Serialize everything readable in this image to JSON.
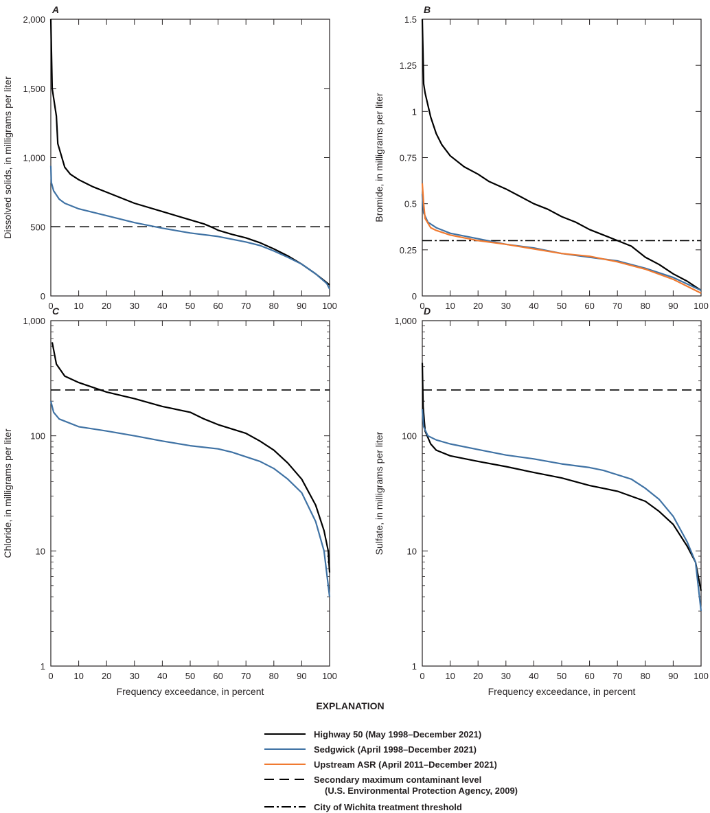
{
  "chart_data": [
    {
      "type": "line",
      "panel_label": "A",
      "ylabel": "Dissolved solids, in milligrams per liter",
      "xlabel": "",
      "xlim": [
        0,
        100
      ],
      "ylim": [
        0,
        2000
      ],
      "yscale": "linear",
      "xticks": [
        "0",
        "10",
        "20",
        "30",
        "40",
        "50",
        "60",
        "70",
        "80",
        "90",
        "100"
      ],
      "yticks": [
        {
          "v": 0,
          "label": "0"
        },
        {
          "v": 500,
          "label": "500"
        },
        {
          "v": 1000,
          "label": "1,000"
        },
        {
          "v": 1500,
          "label": "1,500"
        },
        {
          "v": 2000,
          "label": "2,000"
        }
      ],
      "series": [
        {
          "name": "Highway 50",
          "color": "#000000",
          "points": [
            [
              0,
              2000
            ],
            [
              0.5,
              1500
            ],
            [
              2,
              1300
            ],
            [
              2.5,
              1100
            ],
            [
              5,
              930
            ],
            [
              7,
              880
            ],
            [
              10,
              840
            ],
            [
              15,
              790
            ],
            [
              20,
              750
            ],
            [
              30,
              670
            ],
            [
              40,
              610
            ],
            [
              50,
              550
            ],
            [
              55,
              520
            ],
            [
              58,
              495
            ],
            [
              60,
              475
            ],
            [
              65,
              445
            ],
            [
              70,
              420
            ],
            [
              75,
              385
            ],
            [
              80,
              340
            ],
            [
              85,
              290
            ],
            [
              90,
              230
            ],
            [
              95,
              160
            ],
            [
              100,
              80
            ]
          ]
        },
        {
          "name": "Sedgwick",
          "color": "#3f72a4",
          "points": [
            [
              0,
              940
            ],
            [
              0.2,
              820
            ],
            [
              1,
              760
            ],
            [
              3,
              700
            ],
            [
              5,
              670
            ],
            [
              10,
              630
            ],
            [
              20,
              580
            ],
            [
              30,
              530
            ],
            [
              40,
              490
            ],
            [
              50,
              455
            ],
            [
              60,
              430
            ],
            [
              70,
              390
            ],
            [
              75,
              365
            ],
            [
              80,
              325
            ],
            [
              85,
              280
            ],
            [
              90,
              230
            ],
            [
              95,
              160
            ],
            [
              99,
              90
            ],
            [
              100,
              50
            ]
          ]
        }
      ],
      "reference_lines": [
        {
          "type": "smcl",
          "value": 500
        }
      ]
    },
    {
      "type": "line",
      "panel_label": "B",
      "ylabel": "Bromide, in milligrams per liter",
      "xlabel": "",
      "xlim": [
        0,
        100
      ],
      "ylim": [
        0,
        1.5
      ],
      "yscale": "linear",
      "xticks": [
        "0",
        "10",
        "20",
        "30",
        "40",
        "50",
        "60",
        "70",
        "80",
        "90",
        "100"
      ],
      "yticks": [
        {
          "v": 0,
          "label": "0"
        },
        {
          "v": 0.25,
          "label": "0.25"
        },
        {
          "v": 0.5,
          "label": "0.5"
        },
        {
          "v": 0.75,
          "label": "0.75"
        },
        {
          "v": 1,
          "label": "1"
        },
        {
          "v": 1.25,
          "label": "1.25"
        },
        {
          "v": 1.5,
          "label": "1.5"
        }
      ],
      "series": [
        {
          "name": "Highway 50",
          "color": "#000000",
          "points": [
            [
              0,
              1.5
            ],
            [
              0.5,
              1.15
            ],
            [
              1,
              1.1
            ],
            [
              3,
              0.97
            ],
            [
              5,
              0.88
            ],
            [
              7,
              0.82
            ],
            [
              10,
              0.76
            ],
            [
              15,
              0.7
            ],
            [
              20,
              0.66
            ],
            [
              24,
              0.62
            ],
            [
              30,
              0.58
            ],
            [
              35,
              0.54
            ],
            [
              40,
              0.5
            ],
            [
              45,
              0.47
            ],
            [
              50,
              0.43
            ],
            [
              55,
              0.4
            ],
            [
              60,
              0.36
            ],
            [
              65,
              0.33
            ],
            [
              70,
              0.3
            ],
            [
              75,
              0.27
            ],
            [
              80,
              0.21
            ],
            [
              85,
              0.17
            ],
            [
              90,
              0.12
            ],
            [
              95,
              0.08
            ],
            [
              100,
              0.03
            ]
          ]
        },
        {
          "name": "Sedgwick",
          "color": "#3f72a4",
          "points": [
            [
              0,
              0.55
            ],
            [
              0.5,
              0.45
            ],
            [
              2,
              0.4
            ],
            [
              5,
              0.37
            ],
            [
              10,
              0.34
            ],
            [
              20,
              0.31
            ],
            [
              30,
              0.28
            ],
            [
              40,
              0.26
            ],
            [
              50,
              0.23
            ],
            [
              60,
              0.21
            ],
            [
              70,
              0.19
            ],
            [
              80,
              0.15
            ],
            [
              90,
              0.1
            ],
            [
              100,
              0.03
            ]
          ]
        },
        {
          "name": "Upstream ASR",
          "color": "#f07a30",
          "points": [
            [
              0,
              0.61
            ],
            [
              0.5,
              0.5
            ],
            [
              1,
              0.42
            ],
            [
              3,
              0.37
            ],
            [
              5,
              0.355
            ],
            [
              10,
              0.33
            ],
            [
              20,
              0.3
            ],
            [
              30,
              0.28
            ],
            [
              40,
              0.255
            ],
            [
              50,
              0.23
            ],
            [
              60,
              0.215
            ],
            [
              70,
              0.185
            ],
            [
              80,
              0.145
            ],
            [
              90,
              0.09
            ],
            [
              100,
              0.015
            ]
          ]
        }
      ],
      "reference_lines": [
        {
          "type": "wichita",
          "value": 0.3
        }
      ]
    },
    {
      "type": "line",
      "panel_label": "C",
      "ylabel": "Chloride, in milligrams per liter",
      "xlabel": "Frequency exceedance, in percent",
      "xlim": [
        0,
        100
      ],
      "ylim": [
        1,
        1000
      ],
      "yscale": "log",
      "xticks": [
        "0",
        "10",
        "20",
        "30",
        "40",
        "50",
        "60",
        "70",
        "80",
        "90",
        "100"
      ],
      "yticks": [
        {
          "v": 1,
          "label": "1"
        },
        {
          "v": 10,
          "label": "10"
        },
        {
          "v": 100,
          "label": "100"
        },
        {
          "v": 1000,
          "label": "1,000"
        }
      ],
      "series": [
        {
          "name": "Highway 50",
          "color": "#000000",
          "points": [
            [
              0.5,
              650
            ],
            [
              2,
              420
            ],
            [
              5,
              330
            ],
            [
              10,
              290
            ],
            [
              20,
              240
            ],
            [
              30,
              210
            ],
            [
              40,
              180
            ],
            [
              50,
              160
            ],
            [
              55,
              140
            ],
            [
              60,
              125
            ],
            [
              70,
              105
            ],
            [
              75,
              90
            ],
            [
              80,
              75
            ],
            [
              85,
              58
            ],
            [
              90,
              42
            ],
            [
              95,
              25
            ],
            [
              98,
              15
            ],
            [
              99.5,
              10
            ],
            [
              100,
              6.5
            ]
          ]
        },
        {
          "name": "Sedgwick",
          "color": "#3f72a4",
          "points": [
            [
              0,
              200
            ],
            [
              1,
              160
            ],
            [
              3,
              140
            ],
            [
              10,
              120
            ],
            [
              20,
              110
            ],
            [
              30,
              100
            ],
            [
              40,
              90
            ],
            [
              50,
              82
            ],
            [
              60,
              77
            ],
            [
              65,
              72
            ],
            [
              75,
              60
            ],
            [
              80,
              52
            ],
            [
              85,
              42
            ],
            [
              90,
              32
            ],
            [
              95,
              18
            ],
            [
              98,
              10
            ],
            [
              100,
              4
            ]
          ]
        }
      ],
      "reference_lines": [
        {
          "type": "smcl",
          "value": 250
        }
      ]
    },
    {
      "type": "line",
      "panel_label": "D",
      "ylabel": "Sulfate, in milligrams per liter",
      "xlabel": "Frequency exceedance, in percent",
      "xlim": [
        0,
        100
      ],
      "ylim": [
        1,
        1000
      ],
      "yscale": "log",
      "xticks": [
        "0",
        "10",
        "20",
        "30",
        "40",
        "50",
        "60",
        "70",
        "80",
        "90",
        "100"
      ],
      "yticks": [
        {
          "v": 1,
          "label": "1"
        },
        {
          "v": 10,
          "label": "10"
        },
        {
          "v": 100,
          "label": "100"
        },
        {
          "v": 1000,
          "label": "1,000"
        }
      ],
      "series": [
        {
          "name": "Highway 50",
          "color": "#000000",
          "points": [
            [
              0,
              430
            ],
            [
              0.3,
              180
            ],
            [
              1,
              110
            ],
            [
              3,
              85
            ],
            [
              5,
              75
            ],
            [
              10,
              67
            ],
            [
              20,
              60
            ],
            [
              30,
              54
            ],
            [
              40,
              48
            ],
            [
              50,
              43
            ],
            [
              60,
              37
            ],
            [
              70,
              33
            ],
            [
              80,
              27
            ],
            [
              85,
              22
            ],
            [
              90,
              17
            ],
            [
              95,
              11
            ],
            [
              98,
              8
            ],
            [
              100,
              4.5
            ]
          ]
        },
        {
          "name": "Sedgwick",
          "color": "#3f72a4",
          "points": [
            [
              0,
              170
            ],
            [
              0.5,
              120
            ],
            [
              2,
              100
            ],
            [
              5,
              92
            ],
            [
              10,
              85
            ],
            [
              20,
              76
            ],
            [
              30,
              68
            ],
            [
              40,
              63
            ],
            [
              50,
              57
            ],
            [
              60,
              53
            ],
            [
              65,
              50
            ],
            [
              75,
              42
            ],
            [
              80,
              35
            ],
            [
              85,
              28
            ],
            [
              90,
              20
            ],
            [
              95,
              12
            ],
            [
              98,
              8
            ],
            [
              100,
              3
            ]
          ]
        }
      ],
      "reference_lines": [
        {
          "type": "smcl",
          "value": 250
        }
      ]
    }
  ],
  "legend": {
    "title": "EXPLANATION",
    "placement": "bottom-center",
    "items": [
      {
        "label": "Highway 50 (May 1998–December 2021)",
        "style": "solid",
        "color": "#000000"
      },
      {
        "label": "Sedgwick (April 1998–December 2021)",
        "style": "solid",
        "color": "#3f72a4"
      },
      {
        "label": "Upstream ASR (April 2011–December 2021)",
        "style": "solid",
        "color": "#f07a30"
      },
      {
        "label": "Secondary maximum contaminant level",
        "sublabel": "(U.S. Environmental Protection Agency, 2009)",
        "style": "dashed",
        "color": "#000000"
      },
      {
        "label": "City of Wichita treatment threshold",
        "style": "dash-dot",
        "color": "#000000"
      }
    ]
  }
}
